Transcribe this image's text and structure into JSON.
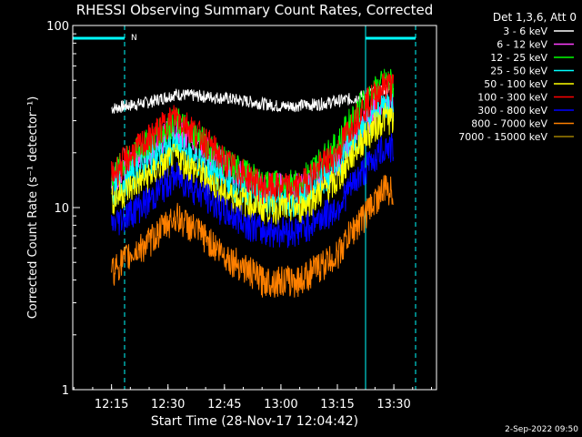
{
  "chart_data": {
    "type": "line",
    "title": "RHESSI Observing Summary Count Rates, Corrected",
    "xlabel": "Start Time (28-Nov-17 12:04:42)",
    "ylabel": "Corrected Count Rate (s⁻¹ detector⁻¹)",
    "yscale": "log",
    "ylim": [
      1,
      100
    ],
    "xlim": [
      "12:04:42",
      "13:41:20"
    ],
    "grid": false,
    "x_ticks": [
      "12:15",
      "12:30",
      "12:45",
      "13:00",
      "13:15",
      "13:30"
    ],
    "y_ticks": [
      "1",
      "10",
      "100"
    ],
    "legend": {
      "placement": "top-right",
      "header": "Det 1,3,6, Att 0"
    },
    "series": [
      {
        "name": "3 - 6 keV",
        "color": "#ffffff",
        "x": [
          "12:15",
          "12:25",
          "12:32",
          "12:45",
          "13:00",
          "13:10",
          "13:20",
          "13:28",
          "13:30"
        ],
        "values": [
          35,
          38,
          42,
          40,
          36,
          37,
          40,
          45,
          46
        ]
      },
      {
        "name": "6 - 12 keV",
        "color": "#ff40ff",
        "x": [
          "12:15",
          "12:25",
          "12:32",
          "12:45",
          "12:55",
          "13:05",
          "13:15",
          "13:22",
          "13:28",
          "13:30"
        ],
        "values": [
          14,
          21,
          27,
          17,
          13,
          13,
          18,
          30,
          38,
          35
        ]
      },
      {
        "name": "12 - 25 keV",
        "color": "#00ff00",
        "x": [
          "12:15",
          "12:25",
          "12:32",
          "12:45",
          "12:55",
          "13:05",
          "13:15",
          "13:22",
          "13:28",
          "13:30"
        ],
        "values": [
          15,
          23,
          30,
          18,
          13.5,
          13.5,
          22,
          38,
          50,
          48
        ]
      },
      {
        "name": "25 - 50 keV",
        "color": "#00ffff",
        "x": [
          "12:15",
          "12:25",
          "12:32",
          "12:45",
          "12:55",
          "13:05",
          "13:15",
          "13:22",
          "13:28",
          "13:30"
        ],
        "values": [
          12,
          18,
          22,
          14,
          11,
          11,
          17,
          28,
          38,
          36
        ]
      },
      {
        "name": "50 - 100 keV",
        "color": "#ffff00",
        "x": [
          "12:15",
          "12:25",
          "12:32",
          "12:45",
          "12:55",
          "13:05",
          "13:15",
          "13:22",
          "13:28",
          "13:30"
        ],
        "values": [
          11,
          15,
          19,
          12,
          10,
          10,
          14,
          24,
          32,
          30
        ]
      },
      {
        "name": "100 - 300 keV",
        "color": "#ff0000",
        "x": [
          "12:15",
          "12:25",
          "12:32",
          "12:45",
          "12:55",
          "13:05",
          "13:15",
          "13:22",
          "13:28",
          "13:30"
        ],
        "values": [
          15,
          24,
          32,
          18,
          13,
          13,
          20,
          36,
          48,
          46
        ]
      },
      {
        "name": "300 - 800 keV",
        "color": "#0000ff",
        "x": [
          "12:15",
          "12:25",
          "12:32",
          "12:45",
          "12:55",
          "13:05",
          "13:15",
          "13:22",
          "13:28",
          "13:30"
        ],
        "values": [
          8,
          11,
          15,
          9.5,
          7.5,
          7.5,
          10,
          16,
          22,
          21
        ]
      },
      {
        "name": "800 - 7000 keV",
        "color": "#ff8000",
        "x": [
          "12:15",
          "12:25",
          "12:32",
          "12:45",
          "12:55",
          "13:05",
          "13:15",
          "13:22",
          "13:28",
          "13:30"
        ],
        "values": [
          4.5,
          6.5,
          9,
          5.5,
          4,
          4,
          5.5,
          9,
          13,
          12
        ]
      },
      {
        "name": "7000 - 15000 keV",
        "color": "#a08000",
        "x": [],
        "values": []
      }
    ],
    "annotations": [
      {
        "text": "N",
        "color": "#00ffff"
      }
    ],
    "timestamp": "2-Sep-2022 09:50"
  }
}
